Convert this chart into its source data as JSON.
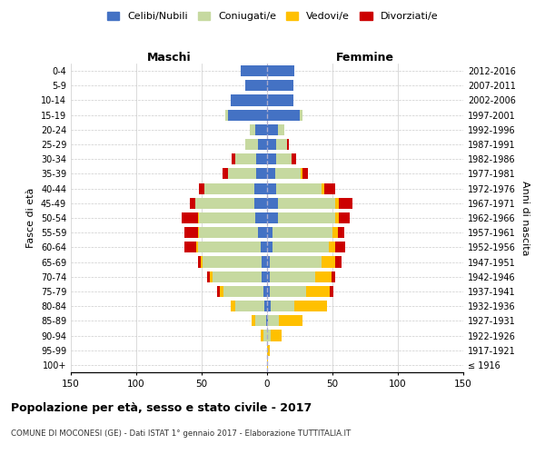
{
  "age_groups": [
    "100+",
    "95-99",
    "90-94",
    "85-89",
    "80-84",
    "75-79",
    "70-74",
    "65-69",
    "60-64",
    "55-59",
    "50-54",
    "45-49",
    "40-44",
    "35-39",
    "30-34",
    "25-29",
    "20-24",
    "15-19",
    "10-14",
    "5-9",
    "0-4"
  ],
  "birth_years": [
    "≤ 1916",
    "1917-1921",
    "1922-1926",
    "1927-1931",
    "1932-1936",
    "1937-1941",
    "1942-1946",
    "1947-1951",
    "1952-1956",
    "1957-1961",
    "1962-1966",
    "1967-1971",
    "1972-1976",
    "1977-1981",
    "1982-1986",
    "1987-1991",
    "1992-1996",
    "1997-2001",
    "2002-2006",
    "2007-2011",
    "2012-2016"
  ],
  "male": {
    "single": [
      0,
      0,
      0,
      1,
      2,
      3,
      4,
      4,
      5,
      7,
      9,
      10,
      10,
      8,
      8,
      7,
      9,
      30,
      28,
      17,
      20
    ],
    "married": [
      0,
      0,
      3,
      8,
      22,
      30,
      38,
      45,
      48,
      45,
      43,
      45,
      38,
      22,
      16,
      10,
      4,
      2,
      0,
      0,
      0
    ],
    "widowed": [
      0,
      0,
      2,
      3,
      4,
      3,
      2,
      2,
      1,
      1,
      1,
      0,
      0,
      0,
      0,
      0,
      0,
      0,
      0,
      0,
      0
    ],
    "divorced": [
      0,
      0,
      0,
      0,
      0,
      2,
      2,
      2,
      9,
      10,
      12,
      4,
      4,
      4,
      3,
      0,
      0,
      0,
      0,
      0,
      0
    ]
  },
  "female": {
    "single": [
      0,
      0,
      0,
      1,
      3,
      2,
      2,
      2,
      4,
      4,
      8,
      8,
      7,
      6,
      7,
      7,
      8,
      25,
      20,
      20,
      21
    ],
    "married": [
      0,
      0,
      3,
      8,
      18,
      28,
      35,
      40,
      43,
      46,
      44,
      44,
      35,
      20,
      12,
      8,
      5,
      2,
      0,
      0,
      0
    ],
    "widowed": [
      1,
      2,
      8,
      18,
      25,
      18,
      12,
      10,
      5,
      4,
      3,
      3,
      2,
      1,
      0,
      0,
      0,
      0,
      0,
      0,
      0
    ],
    "divorced": [
      0,
      0,
      0,
      0,
      0,
      3,
      3,
      5,
      8,
      5,
      8,
      10,
      8,
      4,
      3,
      2,
      0,
      0,
      0,
      0,
      0
    ]
  },
  "colors": {
    "single": "#4472c4",
    "married": "#c6d9a0",
    "widowed": "#ffc000",
    "divorced": "#cc0000"
  },
  "xlim": 150,
  "title": "Popolazione per età, sesso e stato civile - 2017",
  "subtitle": "COMUNE DI MOCONESI (GE) - Dati ISTAT 1° gennaio 2017 - Elaborazione TUTTITALIA.IT",
  "ylabel_left": "Fasce di età",
  "ylabel_right": "Anni di nascita",
  "xlabel_maschi": "Maschi",
  "xlabel_femmine": "Femmine",
  "legend_labels": [
    "Celibi/Nubili",
    "Coniugati/e",
    "Vedovi/e",
    "Divorziati/e"
  ],
  "background_color": "#ffffff",
  "grid_color": "#cccccc"
}
